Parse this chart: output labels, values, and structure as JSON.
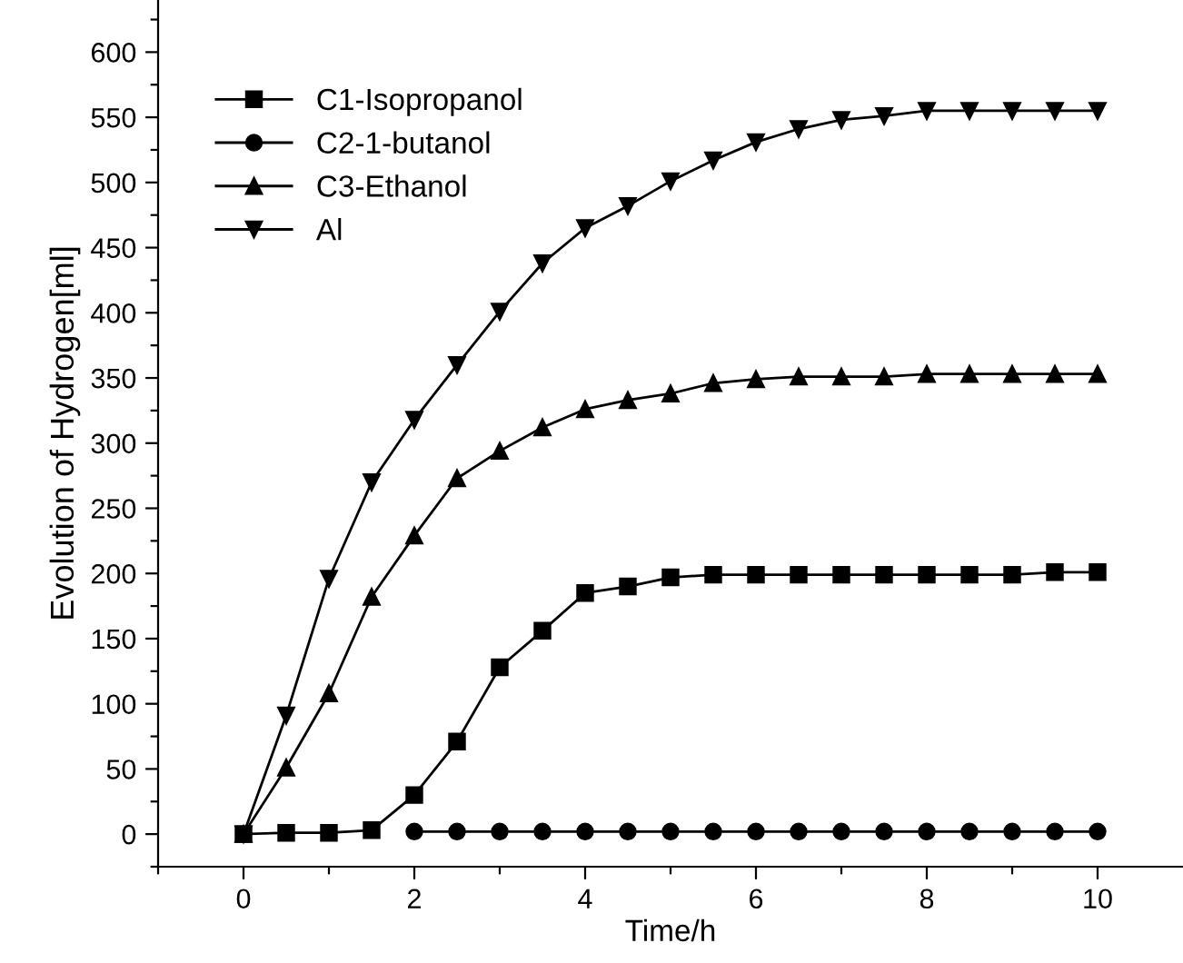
{
  "chart_data": {
    "type": "line",
    "xlabel": "Time/h",
    "ylabel": "Evolution of Hydrogen[ml]",
    "x": [
      0,
      0.5,
      1,
      1.5,
      2,
      2.5,
      3,
      3.5,
      4,
      4.5,
      5,
      5.5,
      6,
      6.5,
      7,
      7.5,
      8,
      8.5,
      9,
      9.5,
      10
    ],
    "series": [
      {
        "name": "C1-Isopropanol",
        "color": "#000000",
        "marker": "square",
        "values": [
          0,
          1,
          1,
          3,
          30,
          71,
          128,
          156,
          185,
          190,
          197,
          199,
          199,
          199,
          199,
          199,
          199,
          199,
          199,
          201,
          201
        ]
      },
      {
        "name": "C2-1-butanol",
        "color": "#000000",
        "marker": "circle",
        "values": [
          null,
          null,
          null,
          null,
          2,
          2,
          2,
          2,
          2,
          2,
          2,
          2,
          2,
          2,
          2,
          2,
          2,
          2,
          2,
          2,
          2
        ]
      },
      {
        "name": "C3-Ethanol",
        "color": "#000000",
        "marker": "triangle",
        "values": [
          0,
          51,
          108,
          182,
          229,
          273,
          294,
          312,
          326,
          333,
          338,
          346,
          349,
          351,
          351,
          351,
          353,
          353,
          353,
          353,
          353
        ]
      },
      {
        "name": "Al",
        "color": "#000000",
        "marker": "triangle_down",
        "values": [
          0,
          91,
          196,
          270,
          318,
          360,
          401,
          438,
          465,
          482,
          501,
          517,
          531,
          541,
          548,
          551,
          555,
          555,
          555,
          555,
          555
        ]
      }
    ],
    "xlim": [
      -1,
      11
    ],
    "ylim": [
      -25,
      640
    ],
    "xticks": [
      {
        "value": -1,
        "label": null
      },
      0,
      {
        "value": 1,
        "label": null
      },
      2,
      {
        "value": 3,
        "label": null
      },
      4,
      {
        "value": 5,
        "label": null
      },
      6,
      {
        "value": 7,
        "label": null
      },
      8,
      {
        "value": 9,
        "label": null
      },
      10
    ],
    "yticks": [
      {
        "value": -25,
        "label": null
      },
      0,
      {
        "value": 25,
        "label": null
      },
      50,
      {
        "value": 75,
        "label": null
      },
      100,
      {
        "value": 125,
        "label": null
      },
      150,
      {
        "value": 175,
        "label": null
      },
      200,
      {
        "value": 225,
        "label": null
      },
      250,
      {
        "value": 275,
        "label": null
      },
      300,
      {
        "value": 325,
        "label": null
      },
      350,
      {
        "value": 375,
        "label": null
      },
      400,
      {
        "value": 425,
        "label": null
      },
      450,
      {
        "value": 475,
        "label": null
      },
      500,
      {
        "value": 525,
        "label": null
      },
      550,
      {
        "value": 575,
        "label": null
      },
      600,
      {
        "value": 625,
        "label": null
      }
    ],
    "legend": "top left",
    "grid": false,
    "line_style": "solid"
  }
}
